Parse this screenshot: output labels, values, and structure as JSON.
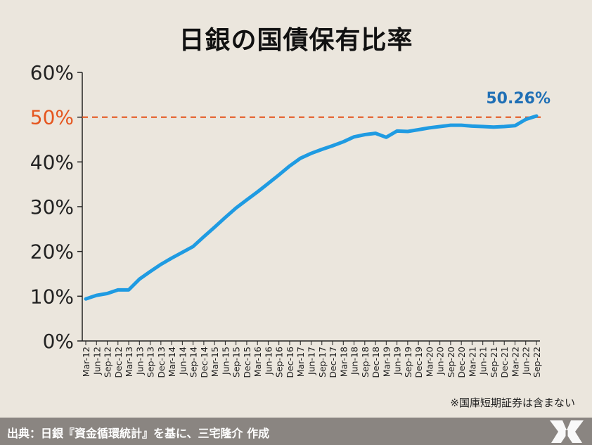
{
  "chart_data": {
    "type": "line",
    "title": "日銀の国債保有比率",
    "x": [
      "Mar-12",
      "Jun-12",
      "Sep-12",
      "Dec-12",
      "Mar-13",
      "Jun-13",
      "Sep-13",
      "Dec-13",
      "Mar-14",
      "Jun-14",
      "Sep-14",
      "Dec-14",
      "Mar-15",
      "Jun-15",
      "Sep-15",
      "Dec-15",
      "Mar-16",
      "Jun-16",
      "Sep-16",
      "Dec-16",
      "Mar-17",
      "Jun-17",
      "Sep-17",
      "Dec-17",
      "Mar-18",
      "Jun-18",
      "Sep-18",
      "Dec-18",
      "Mar-19",
      "Jun-19",
      "Sep-19",
      "Dec-19",
      "Mar-20",
      "Jun-20",
      "Sep-20",
      "Dec-20",
      "Mar-21",
      "Jun-21",
      "Sep-21",
      "Dec-21",
      "Mar-22",
      "Jun-22",
      "Sep-22"
    ],
    "series": [
      {
        "values": [
          9.4,
          10.2,
          10.6,
          11.4,
          11.4,
          13.8,
          15.5,
          17.1,
          18.5,
          19.8,
          21.1,
          23.3,
          25.4,
          27.6,
          29.7,
          31.5,
          33.3,
          35.2,
          37.1,
          39.1,
          40.8,
          41.9,
          42.8,
          43.6,
          44.5,
          45.6,
          46.1,
          46.4,
          45.5,
          46.9,
          46.8,
          47.2,
          47.6,
          47.9,
          48.2,
          48.2,
          48.0,
          47.9,
          47.8,
          47.9,
          48.1,
          49.5,
          50.26
        ]
      }
    ],
    "ylim": [
      0,
      60
    ],
    "yticks": [
      "0%",
      "10%",
      "20%",
      "30%",
      "40%",
      "50%",
      "60%"
    ],
    "reference_line": {
      "value": 50,
      "label": "50%",
      "color": "#e5561f"
    },
    "last_value_label": "50.26%",
    "colors": {
      "line": "#1f9be2",
      "value_label": "#1f6fb5",
      "axis": "#222222"
    }
  },
  "note": "※国庫短期証券は含まない",
  "footer": {
    "source": "出典：日銀『資金循環統計』を基に、三宅隆介 作成"
  }
}
